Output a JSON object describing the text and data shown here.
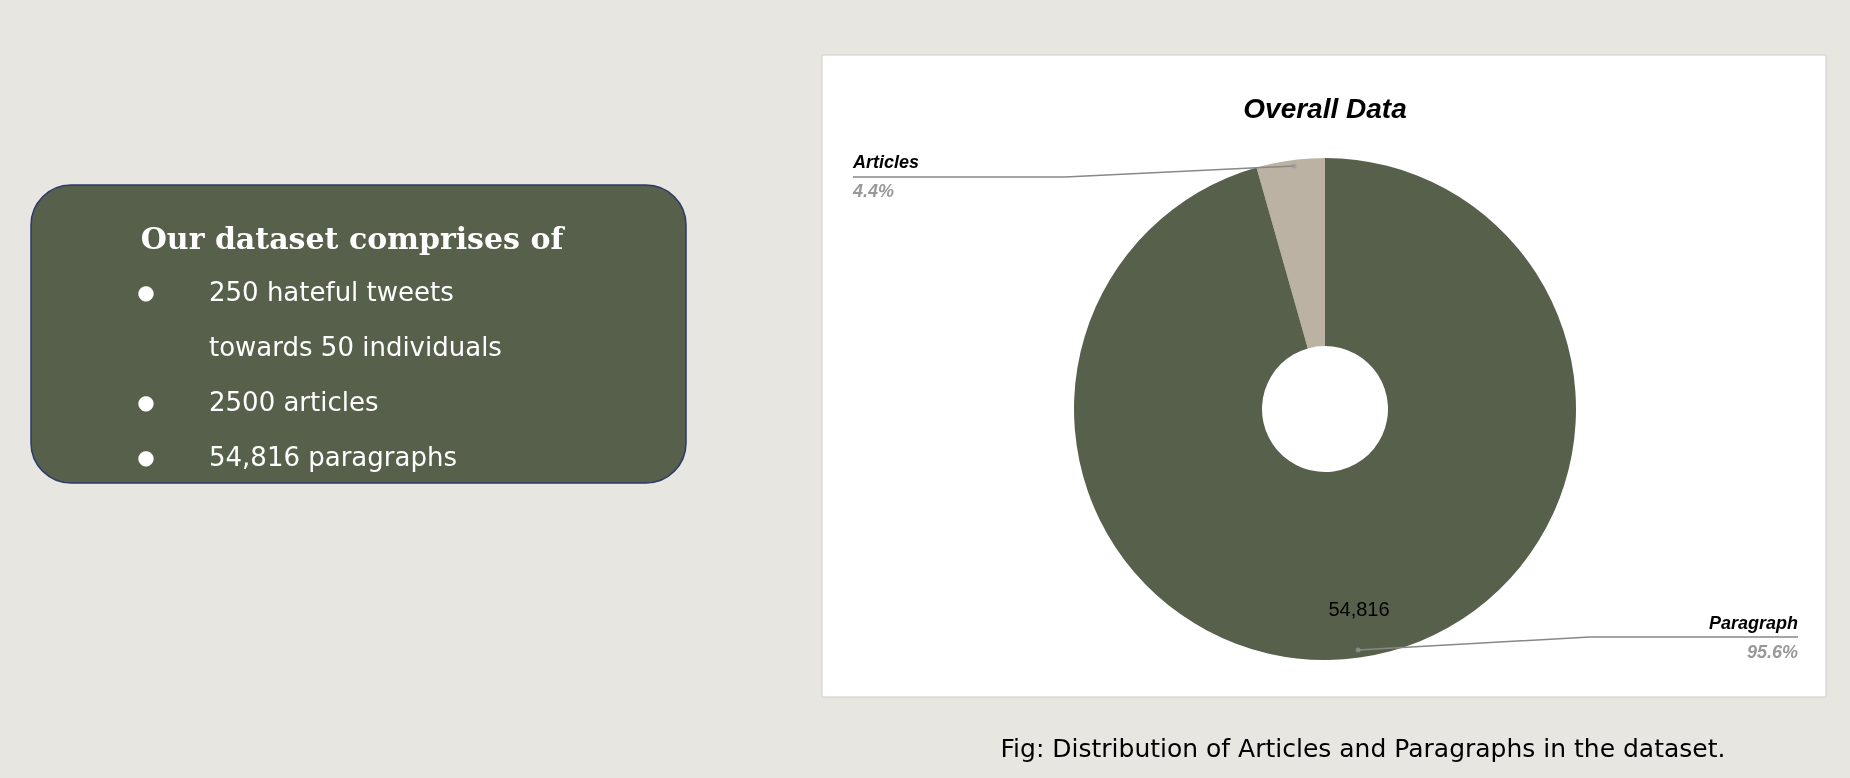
{
  "chart_data": [
    {
      "type": "other",
      "title": "Our dataset comprises of",
      "annotations": [
        "● 250 hateful tweets towards 50 individuals",
        "● 2500 articles",
        "● 54,816 paragraphs"
      ]
    },
    {
      "type": "donut",
      "title": "Overall Data",
      "categories": [
        "Articles",
        "Paragraph"
      ],
      "values": [
        4.4,
        95.6
      ],
      "colors": [
        "#bcb2a3",
        "#56604a"
      ],
      "value_labels": [
        "4.4%",
        "95.6%"
      ],
      "annotations": [
        {
          "text": "54,816",
          "x": "Paragraph"
        },
        "Fig: Distribution of Articles and Paragraphs in the dataset."
      ]
    }
  ]
}
